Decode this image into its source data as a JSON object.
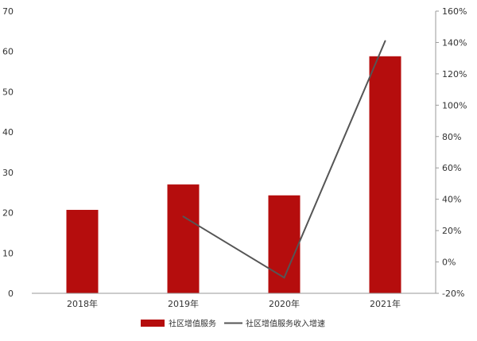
{
  "colors": {
    "bar": "#b50d0d",
    "line": "#555555",
    "axis": "#9a9a9a",
    "text": "#333333",
    "background": "#ffffff"
  },
  "chart_data": {
    "type": "bar",
    "title": "",
    "categories": [
      "2018年",
      "2019年",
      "2020年",
      "2021年"
    ],
    "series": [
      {
        "name": "社区增值服务",
        "type": "bar",
        "axis": "left",
        "values": [
          20.7,
          27.0,
          24.3,
          58.8
        ]
      },
      {
        "name": "社区增值服务收入增速",
        "type": "line",
        "axis": "right",
        "values": [
          null,
          0.29,
          -0.1,
          1.41
        ]
      }
    ],
    "y_left": {
      "ylim": [
        0,
        70
      ],
      "ticks": [
        "0",
        "10",
        "20",
        "30",
        "40",
        "50",
        "60",
        "70"
      ]
    },
    "y_right": {
      "ylim": [
        -0.2,
        1.6
      ],
      "ticks": [
        "-20%",
        "0%",
        "20%",
        "40%",
        "60%",
        "80%",
        "100%",
        "120%",
        "140%",
        "160%"
      ]
    },
    "grid": false,
    "legend": "bottom-center"
  }
}
